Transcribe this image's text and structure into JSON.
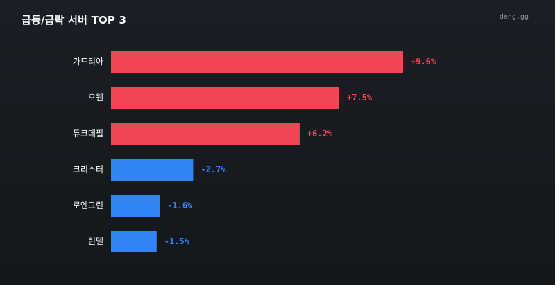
{
  "header": {
    "title": "급등/급락 서버 TOP 3",
    "brand": "deng.gg"
  },
  "colors": {
    "background": "#171a1f",
    "up": "#f04656",
    "down": "#3384f5",
    "label": "#ffffff",
    "brand": "#8b929b"
  },
  "chart_data": {
    "type": "bar",
    "orientation": "horizontal",
    "title": "급등/급락 서버 TOP 3",
    "categories": [
      "가드리아",
      "오웬",
      "듀크데필",
      "크리스터",
      "로엔그린",
      "린델"
    ],
    "values": [
      9.6,
      7.5,
      6.2,
      -2.7,
      -1.6,
      -1.5
    ],
    "value_labels": [
      "+9.6%",
      "+7.5%",
      "+6.2%",
      "-2.7%",
      "-1.6%",
      "-1.5%"
    ],
    "unit": "%",
    "bar_length": "absolute value",
    "xlim": [
      0,
      9.6
    ],
    "grid": false,
    "legend": "none"
  }
}
